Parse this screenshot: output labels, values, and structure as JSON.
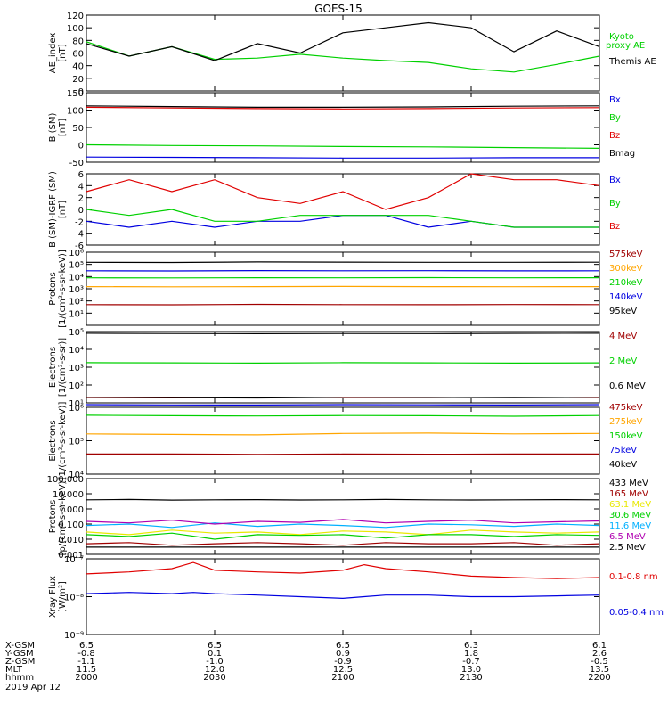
{
  "figure": {
    "title": "GOES-15",
    "date_label": "2019 Apr 12"
  },
  "orbit_table": {
    "row_labels": [
      "X-GSM",
      "Y-GSM",
      "Z-GSM",
      "MLT",
      "hhmm"
    ],
    "columns": [
      {
        "values": [
          "6.5",
          "-0.8",
          "-1.1",
          "11.5",
          "2000"
        ]
      },
      {
        "values": [
          "6.5",
          "0.1",
          "-1.0",
          "12.0",
          "2030"
        ]
      },
      {
        "values": [
          "6.5",
          "0.9",
          "-0.9",
          "12.5",
          "2100"
        ]
      },
      {
        "values": [
          "6.3",
          "1.8",
          "-0.7",
          "13.0",
          "2130"
        ]
      },
      {
        "values": [
          "6.1",
          "2.6",
          "-0.5",
          "13.5",
          "2200"
        ]
      }
    ]
  },
  "colors": {
    "black": "#000000",
    "red": "#e00000",
    "green": "#00d000",
    "blue": "#0000e0",
    "orange": "#ffa500",
    "cyan": "#00b0ff",
    "yellow": "#e8e800",
    "darkred": "#a00000",
    "purple": "#b000b0"
  },
  "chart_data": [
    {
      "type": "line",
      "ylabel_lines": [
        "AE_index",
        "[nT]"
      ],
      "yscale": "linear",
      "ylim": [
        0,
        120
      ],
      "yticks": [
        0,
        20,
        40,
        60,
        80,
        100,
        120
      ],
      "ytick_labels": [
        "0",
        "20",
        "40",
        "60",
        "80",
        "100",
        "120"
      ],
      "x": [
        0,
        10,
        20,
        30,
        40,
        50,
        60,
        70,
        80,
        90,
        100,
        110,
        120
      ],
      "series": [
        {
          "name": "Kyoto",
          "name2": "proxy AE",
          "color": "#00d000",
          "values": [
            78,
            55,
            70,
            50,
            52,
            58,
            52,
            48,
            45,
            35,
            30,
            42,
            55
          ]
        },
        {
          "name": "Themis AE",
          "color": "#000000",
          "values": [
            75,
            55,
            70,
            48,
            75,
            60,
            92,
            100,
            108,
            100,
            62,
            95,
            70
          ]
        }
      ]
    },
    {
      "type": "line",
      "ylabel_lines": [
        "B (SM)",
        "[nT]"
      ],
      "yscale": "linear",
      "ylim": [
        -50,
        150
      ],
      "yticks": [
        -50,
        0,
        50,
        100,
        150
      ],
      "ytick_labels": [
        "-50",
        "0",
        "50",
        "100",
        "150"
      ],
      "x": [
        0,
        20,
        40,
        60,
        80,
        100,
        120
      ],
      "series": [
        {
          "name": "Bx",
          "color": "#0000e0",
          "values": [
            -35,
            -36,
            -37,
            -38,
            -38,
            -37,
            -37
          ]
        },
        {
          "name": "By",
          "color": "#00d000",
          "values": [
            0,
            -2,
            -3,
            -5,
            -6,
            -8,
            -10
          ]
        },
        {
          "name": "Bz",
          "color": "#e00000",
          "values": [
            108,
            106,
            104,
            103,
            104,
            106,
            107
          ]
        },
        {
          "name": "Bmag",
          "color": "#000000",
          "values": [
            112,
            110,
            108,
            108,
            109,
            111,
            112
          ]
        }
      ]
    },
    {
      "type": "line",
      "ylabel_lines": [
        "B (SM)-IGRF (SM)",
        "[nT]"
      ],
      "yscale": "linear",
      "ylim": [
        -6,
        6
      ],
      "yticks": [
        -6,
        -4,
        -2,
        0,
        2,
        4,
        6
      ],
      "ytick_labels": [
        "-6",
        "-4",
        "-2",
        "0",
        "2",
        "4",
        "6"
      ],
      "x": [
        0,
        10,
        20,
        30,
        40,
        50,
        60,
        70,
        80,
        90,
        100,
        110,
        120
      ],
      "series": [
        {
          "name": "Bx",
          "color": "#0000e0",
          "values": [
            -2,
            -3,
            -2,
            -3,
            -2,
            -2,
            -1,
            -1,
            -3,
            -2,
            -3,
            -3,
            -3
          ]
        },
        {
          "name": "By",
          "color": "#00d000",
          "values": [
            0,
            -1,
            0,
            -2,
            -2,
            -1,
            -1,
            -1,
            -1,
            -2,
            -3,
            -3,
            -3
          ]
        },
        {
          "name": "Bz",
          "color": "#e00000",
          "values": [
            3,
            5,
            3,
            5,
            2,
            1,
            3,
            0,
            2,
            6,
            5,
            5,
            4
          ]
        }
      ]
    },
    {
      "type": "line",
      "ylabel_lines": [
        "Protons",
        "[1/(cm²-s-sr-keV)]"
      ],
      "yscale": "log",
      "ylim": [
        1,
        1000000
      ],
      "yticks": [
        10,
        100,
        1000,
        10000,
        100000,
        1000000
      ],
      "ytick_labels": [
        "10¹",
        "10²",
        "10³",
        "10⁴",
        "10⁵",
        "10⁶"
      ],
      "x": [
        0,
        20,
        40,
        60,
        80,
        100,
        120
      ],
      "series": [
        {
          "name": "575keV",
          "color": "#a00000",
          "values": [
            50,
            48,
            52,
            50,
            49,
            51,
            50
          ]
        },
        {
          "name": "300keV",
          "color": "#ffa500",
          "values": [
            1500,
            1450,
            1500,
            1550,
            1500,
            1480,
            1500
          ]
        },
        {
          "name": "210keV",
          "color": "#00d000",
          "values": [
            8000,
            7800,
            8100,
            8000,
            8200,
            8000,
            8100
          ]
        },
        {
          "name": "140keV",
          "color": "#0000e0",
          "values": [
            30000,
            29000,
            31000,
            30000,
            30500,
            29500,
            30000
          ]
        },
        {
          "name": "95keV",
          "color": "#000000",
          "values": [
            150000,
            145000,
            160000,
            155000,
            150000,
            148000,
            152000
          ]
        }
      ]
    },
    {
      "type": "line",
      "ylabel_lines": [
        "Electrons",
        "[1/(cm²-s-sr)]"
      ],
      "yscale": "log",
      "ylim": [
        10,
        100000
      ],
      "yticks": [
        10,
        100,
        1000,
        10000,
        100000
      ],
      "ytick_labels": [
        "10¹",
        "10²",
        "10³",
        "10⁴",
        "10⁵"
      ],
      "x": [
        0,
        20,
        40,
        60,
        80,
        100,
        120
      ],
      "series": [
        {
          "name": "4 MeV",
          "color": "#a00000",
          "values": [
            20,
            19,
            21,
            20,
            20,
            21,
            20
          ]
        },
        {
          "name": "2 MeV",
          "color": "#00d000",
          "values": [
            1800,
            1750,
            1700,
            1800,
            1750,
            1700,
            1750
          ]
        },
        {
          "name": "0.6 MeV",
          "color": "#000000",
          "values": [
            80000,
            78000,
            76000,
            78000,
            77000,
            79000,
            80000
          ]
        }
      ]
    },
    {
      "type": "line",
      "ylabel_lines": [
        "Electrons",
        "[1/(cm²-s-sr-keV)]"
      ],
      "yscale": "log",
      "ylim": [
        10000,
        1000000
      ],
      "yticks": [
        10000,
        100000,
        1000000
      ],
      "ytick_labels": [
        "10⁴",
        "10⁵",
        "10⁶"
      ],
      "x": [
        0,
        20,
        40,
        60,
        80,
        100,
        120
      ],
      "series": [
        {
          "name": "475keV",
          "color": "#a00000",
          "values": [
            40000,
            40000,
            39000,
            40000,
            39500,
            40000,
            40000
          ]
        },
        {
          "name": "275keV",
          "color": "#ffa500",
          "values": [
            160000,
            155000,
            150000,
            165000,
            170000,
            160000,
            165000
          ]
        },
        {
          "name": "150keV",
          "color": "#00d000",
          "values": [
            580000,
            560000,
            550000,
            570000,
            560000,
            540000,
            570000
          ]
        },
        {
          "name": "75keV",
          "color": "#0000e0",
          "values": [
            1200000,
            1180000,
            1170000,
            1200000,
            1190000,
            1170000,
            1200000
          ]
        },
        {
          "name": "40keV",
          "color": "#000000",
          "values": [
            2000000,
            1950000,
            1900000,
            2000000,
            1980000,
            1950000,
            2000000
          ]
        }
      ]
    },
    {
      "type": "line",
      "ylabel_lines": [
        "Protons",
        "[p/(cm²-s-sr-keV)]"
      ],
      "yscale": "log",
      "ylim": [
        0.001,
        100
      ],
      "yticks": [
        0.001,
        0.01,
        0.1,
        1,
        10,
        100
      ],
      "ytick_labels": [
        "0.001",
        "0.010",
        "0.100",
        "1.000",
        "10.000",
        "100.000"
      ],
      "x": [
        0,
        10,
        20,
        30,
        40,
        50,
        60,
        70,
        80,
        90,
        100,
        110,
        120
      ],
      "series": [
        {
          "name": "433 MeV",
          "color": "#000000",
          "values": [
            4,
            4.2,
            3.8,
            4,
            4.1,
            3.9,
            4,
            4.2,
            4,
            3.9,
            4,
            4.1,
            4
          ]
        },
        {
          "name": "165 MeV",
          "color": "#a00000",
          "values": [
            0.005,
            0.006,
            0.004,
            0.005,
            0.006,
            0.005,
            0.004,
            0.006,
            0.005,
            0.005,
            0.006,
            0.004,
            0.005
          ]
        },
        {
          "name": "63.1 MeV",
          "color": "#e8e800",
          "values": [
            0.03,
            0.02,
            0.04,
            0.025,
            0.03,
            0.02,
            0.035,
            0.03,
            0.02,
            0.04,
            0.03,
            0.025,
            0.03
          ]
        },
        {
          "name": "30.6 MeV",
          "color": "#00d000",
          "values": [
            0.02,
            0.015,
            0.025,
            0.01,
            0.02,
            0.018,
            0.02,
            0.012,
            0.02,
            0.02,
            0.015,
            0.02,
            0.018
          ]
        },
        {
          "name": "11.6 MeV",
          "color": "#00b0ff",
          "values": [
            0.08,
            0.1,
            0.06,
            0.12,
            0.07,
            0.1,
            0.08,
            0.06,
            0.1,
            0.09,
            0.07,
            0.1,
            0.08
          ]
        },
        {
          "name": "6.5 MeV",
          "color": "#b000b0",
          "values": [
            0.15,
            0.12,
            0.18,
            0.1,
            0.15,
            0.13,
            0.2,
            0.12,
            0.15,
            0.18,
            0.12,
            0.14,
            0.16
          ]
        },
        {
          "name": "2.5 MeV",
          "color": "#000000",
          "values": [
            0.003,
            0.003,
            0.003,
            0.003,
            0.003,
            0.003,
            0.003,
            0.003,
            0.003,
            0.003,
            0.003,
            0.003,
            0.003
          ]
        }
      ]
    },
    {
      "type": "line",
      "ylabel_lines": [
        "Xray Flux",
        "[W/m²]"
      ],
      "yscale": "log",
      "ylim": [
        1e-09,
        1e-07
      ],
      "yticks": [
        1e-09,
        1e-08,
        1e-07
      ],
      "ytick_labels": [
        "10⁻⁹",
        "10⁻⁸",
        "10⁻⁷"
      ],
      "x": [
        0,
        10,
        20,
        25,
        30,
        40,
        50,
        60,
        65,
        70,
        80,
        90,
        100,
        110,
        120
      ],
      "series": [
        {
          "name": "0.1-0.8 nm",
          "color": "#e00000",
          "values": [
            4e-08,
            4.5e-08,
            5.5e-08,
            8e-08,
            5e-08,
            4.5e-08,
            4.2e-08,
            5e-08,
            7e-08,
            5.5e-08,
            4.5e-08,
            3.5e-08,
            3.2e-08,
            3e-08,
            3.2e-08
          ]
        },
        {
          "name": "0.05-0.4 nm",
          "color": "#0000e0",
          "values": [
            1.2e-08,
            1.3e-08,
            1.2e-08,
            1.3e-08,
            1.2e-08,
            1.1e-08,
            1e-08,
            9e-09,
            1e-08,
            1.1e-08,
            1.1e-08,
            1e-08,
            1e-08,
            1.05e-08,
            1.1e-08
          ]
        }
      ]
    }
  ]
}
